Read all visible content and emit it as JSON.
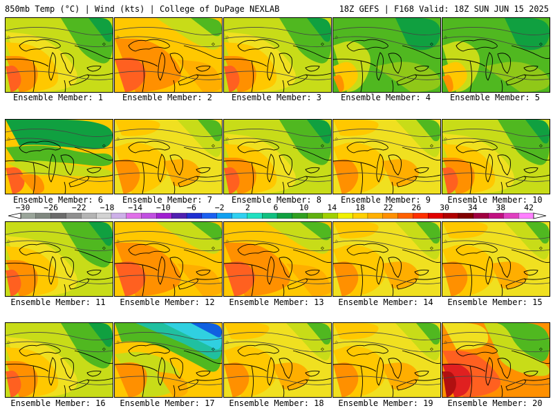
{
  "header": {
    "left": "850mb Temp (°C) | Wind (kts) | College of DuPage NEXLAB",
    "right": "18Z GEFS | F168 Valid: 18Z SUN JUN 15 2025"
  },
  "panels": [
    {
      "label": "Ensemble Member: 1",
      "scheme": "warm-west"
    },
    {
      "label": "Ensemble Member: 2",
      "scheme": "orange"
    },
    {
      "label": "Ensemble Member: 3",
      "scheme": "warm-west"
    },
    {
      "label": "Ensemble Member: 4",
      "scheme": "green"
    },
    {
      "label": "Ensemble Member: 5",
      "scheme": "green"
    },
    {
      "label": "Ensemble Member: 6",
      "scheme": "green-north"
    },
    {
      "label": "Ensemble Member: 7",
      "scheme": "yellow"
    },
    {
      "label": "Ensemble Member: 8",
      "scheme": "warm-west"
    },
    {
      "label": "Ensemble Member: 9",
      "scheme": "yellow"
    },
    {
      "label": "Ensemble Member: 10",
      "scheme": "warm-west"
    },
    {
      "label": "Ensemble Member: 11",
      "scheme": "warm-west"
    },
    {
      "label": "Ensemble Member: 12",
      "scheme": "orange"
    },
    {
      "label": "Ensemble Member: 13",
      "scheme": "orange"
    },
    {
      "label": "Ensemble Member: 14",
      "scheme": "yellow"
    },
    {
      "label": "Ensemble Member: 15",
      "scheme": "yellow"
    },
    {
      "label": "Ensemble Member: 16",
      "scheme": "warm-west"
    },
    {
      "label": "Ensemble Member: 17",
      "scheme": "blue-north"
    },
    {
      "label": "Ensemble Member: 18",
      "scheme": "yellow"
    },
    {
      "label": "Ensemble Member: 19",
      "scheme": "yellow"
    },
    {
      "label": "Ensemble Member: 20",
      "scheme": "hot-west"
    }
  ],
  "colorbar": {
    "labels": [
      "−30",
      "−26",
      "−22",
      "−18",
      "−14",
      "−10",
      "−6",
      "−2",
      "2",
      "6",
      "10",
      "14",
      "18",
      "22",
      "26",
      "30",
      "34",
      "38",
      "42"
    ],
    "colors": [
      "#9aa59a",
      "#808880",
      "#6c6c6c",
      "#909090",
      "#b4b4b4",
      "#d2d2d2",
      "#cdb0e8",
      "#e070e8",
      "#c050e0",
      "#a020d0",
      "#5020b0",
      "#2030d0",
      "#1c60f0",
      "#10a0f0",
      "#30d0f0",
      "#20e0c0",
      "#10c080",
      "#10a040",
      "#30a020",
      "#60b010",
      "#a0d000",
      "#f0f000",
      "#ffd000",
      "#ffb000",
      "#ff9000",
      "#ff6000",
      "#ff3000",
      "#e00000",
      "#b00000",
      "#800000",
      "#a00040",
      "#c01080",
      "#e040c0",
      "#ff80ff"
    ]
  },
  "colors": {
    "blue": "#1060e0",
    "cyan": "#30d0e0",
    "teal": "#20c0a0",
    "green-dark": "#10a040",
    "green": "#50b820",
    "green-light": "#90c818",
    "yellow-green": "#c8dc18",
    "yellow": "#f0e020",
    "gold": "#ffc800",
    "orange-light": "#ffae00",
    "orange": "#ff9000",
    "red-orange": "#ff6020",
    "red": "#e02020"
  }
}
